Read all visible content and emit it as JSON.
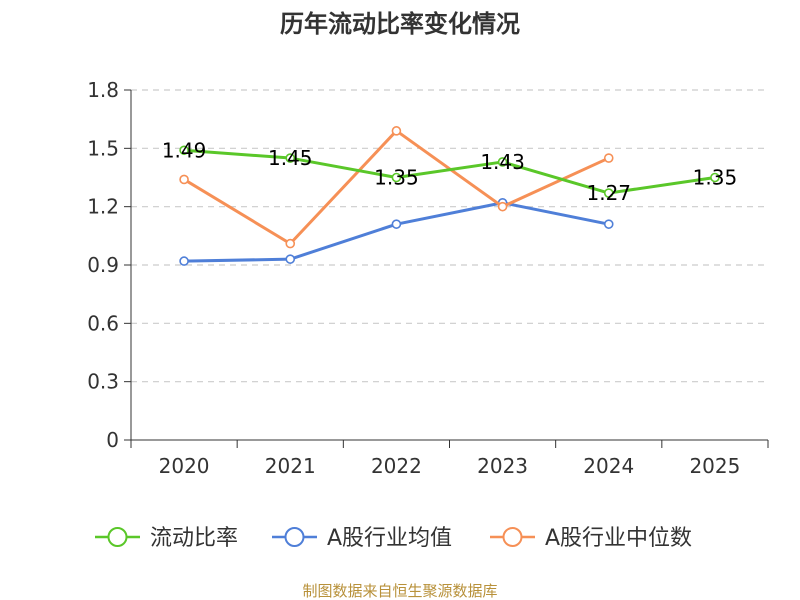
{
  "chart_data": {
    "type": "line",
    "title": "历年流动比率变化情况",
    "categories": [
      "2020",
      "2021",
      "2022",
      "2023",
      "2024",
      "2025"
    ],
    "ylim": [
      0,
      1.8
    ],
    "yticks": [
      "0",
      "0.3",
      "0.6",
      "0.9",
      "1.2",
      "1.5",
      "1.8"
    ],
    "grid": true,
    "legend_position": "bottom",
    "series": [
      {
        "name": "流动比率",
        "color": "#5ac729",
        "values": [
          1.49,
          1.45,
          1.35,
          1.43,
          1.27,
          1.35
        ],
        "labels": [
          "1.49",
          "1.45",
          "1.35",
          "1.43",
          "1.27",
          "1.35"
        ],
        "show_labels": true
      },
      {
        "name": "A股行业均值",
        "color": "#4f7fd8",
        "values": [
          0.92,
          0.93,
          1.11,
          1.22,
          1.11,
          null
        ],
        "show_labels": false
      },
      {
        "name": "A股行业中位数",
        "color": "#f69056",
        "values": [
          1.34,
          1.01,
          1.59,
          1.2,
          1.45,
          null
        ],
        "show_labels": false
      }
    ],
    "source": "制图数据来自恒生聚源数据库"
  }
}
